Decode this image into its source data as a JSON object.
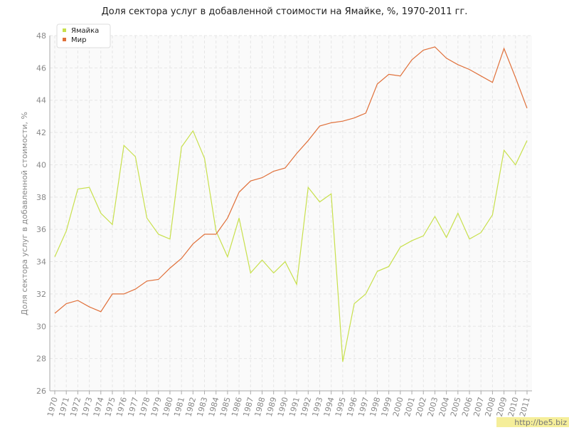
{
  "chart_data": {
    "type": "line",
    "title": "Доля сектора услуг в добавленной стоимости на Ямайке, %, 1970-2011 гг.",
    "y_label": "Доля сектора услуг в добавленной стоимости, %",
    "x": [
      1970,
      1971,
      1972,
      1973,
      1974,
      1975,
      1976,
      1977,
      1978,
      1979,
      1980,
      1981,
      1982,
      1983,
      1984,
      1985,
      1986,
      1987,
      1988,
      1989,
      1990,
      1991,
      1992,
      1993,
      1994,
      1995,
      1996,
      1997,
      1998,
      1999,
      2000,
      2001,
      2002,
      2003,
      2004,
      2005,
      2006,
      2007,
      2008,
      2009,
      2010,
      2011
    ],
    "xlim": [
      1970,
      2011
    ],
    "series": [
      {
        "name": "Ямайка",
        "color": "#c8e04c",
        "values": [
          34.3,
          35.9,
          38.5,
          38.6,
          37.0,
          36.3,
          41.2,
          40.5,
          36.7,
          35.7,
          35.4,
          41.1,
          42.1,
          40.4,
          35.9,
          34.3,
          36.7,
          33.3,
          34.1,
          33.3,
          34.0,
          32.6,
          38.6,
          37.7,
          38.2,
          27.8,
          31.4,
          32.0,
          33.4,
          33.7,
          34.9,
          35.3,
          35.6,
          36.8,
          35.5,
          37.0,
          35.4,
          35.8,
          36.9,
          40.9,
          40.0,
          41.5
        ]
      },
      {
        "name": "Мир",
        "color": "#e0703a",
        "values": [
          30.8,
          31.4,
          31.6,
          31.2,
          30.9,
          32.0,
          32.0,
          32.3,
          32.8,
          32.9,
          33.6,
          34.2,
          35.1,
          35.7,
          35.7,
          36.7,
          38.3,
          39.0,
          39.2,
          39.6,
          39.8,
          40.7,
          41.5,
          42.4,
          42.6,
          42.7,
          42.9,
          43.2,
          45.0,
          45.6,
          45.5,
          46.5,
          47.1,
          47.3,
          46.6,
          46.2,
          45.9,
          45.5,
          45.1,
          47.2,
          45.4,
          43.5
        ]
      }
    ],
    "ylim": [
      26,
      48
    ],
    "yticks": [
      26,
      28,
      30,
      32,
      34,
      36,
      38,
      40,
      42,
      44,
      46,
      48
    ],
    "grid": true,
    "legend": "top-left",
    "watermark": "http://be5.biz"
  }
}
